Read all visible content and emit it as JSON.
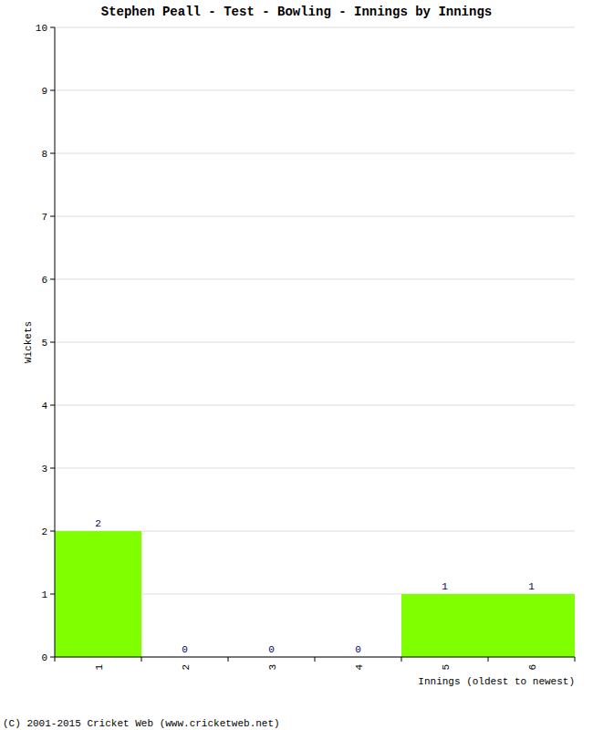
{
  "chart_data": {
    "type": "bar",
    "title": "Stephen Peall - Test - Bowling - Innings by Innings",
    "x_label": "Innings (oldest to newest)",
    "y_label": "Wickets",
    "categories": [
      "1",
      "2",
      "3",
      "4",
      "5",
      "6"
    ],
    "values": [
      2,
      0,
      0,
      0,
      1,
      1
    ],
    "color": "#80ff00",
    "ylim": [
      0,
      10
    ],
    "yticks": [
      0,
      1,
      2,
      3,
      4,
      5,
      6,
      7,
      8,
      9,
      10
    ],
    "grid": true,
    "data_labels": true
  },
  "footer": "(C) 2001-2015 Cricket Web (www.cricketweb.net)"
}
